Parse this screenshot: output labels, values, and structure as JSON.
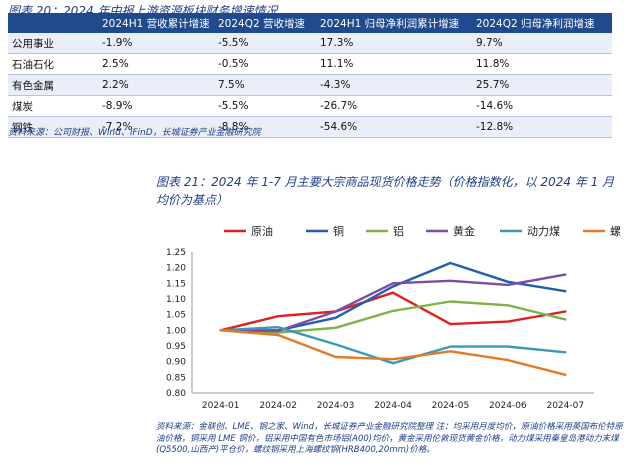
{
  "table_caption": "图表 20：2024 年中报上游资源板块财务增速情况",
  "table": {
    "headers": [
      "",
      "2024H1 营收累计增速",
      "2024Q2 营收增速",
      "2024H1 归母净利润累计增速",
      "2024Q2 归母净利润增速"
    ],
    "rows": [
      [
        "公用事业",
        "-1.9%",
        "-5.5%",
        "17.3%",
        "9.7%"
      ],
      [
        "石油石化",
        "2.5%",
        "-0.5%",
        "11.1%",
        "11.8%"
      ],
      [
        "有色金属",
        "2.2%",
        "7.5%",
        "-4.3%",
        "25.7%"
      ],
      [
        "煤炭",
        "-8.9%",
        "-5.5%",
        "-26.7%",
        "-14.6%"
      ],
      [
        "钢铁",
        "-7.2%",
        "-8.8%",
        "-54.6%",
        "-12.8%"
      ]
    ]
  },
  "table_source": "资料来源：公司财报、Wind、iFinD，长城证券产业金融研究院",
  "chart_caption": "图表 21：2024 年 1-7 月主要大宗商品现货价格走势（价格指数化，以 2024 年 1 月均价为基点）",
  "chart_source": "资料来源：金联创、LME、钢之家、Wind，长城证券产业金融研究院整理 注：均采用月度均价，原油价格采用英国布伦特原油价格，铜采用 LME 铜价，铝采用中国有色市场铝(A00)均价，黄金采用伦敦现货黄金价格，动力煤采用秦皇岛港动力末煤(Q5500,山西产)平仓价，螺纹钢采用上海螺纹钢(HRB400,20mm)价格。",
  "chart_data": {
    "type": "line",
    "x": [
      "2024-01",
      "2024-02",
      "2024-03",
      "2024-04",
      "2024-05",
      "2024-06",
      "2024-07"
    ],
    "ylim": [
      0.8,
      1.25
    ],
    "yticks": [
      "0.80",
      "0.85",
      "0.90",
      "0.95",
      "1.00",
      "1.05",
      "1.10",
      "1.15",
      "1.20",
      "1.25"
    ],
    "grid": false,
    "legend": "top",
    "series": [
      {
        "name": "原油",
        "color": "#e02020",
        "values": [
          1.0,
          1.045,
          1.06,
          1.12,
          1.02,
          1.028,
          1.06
        ]
      },
      {
        "name": "铜",
        "color": "#1f5fb0",
        "values": [
          1.0,
          1.0,
          1.04,
          1.14,
          1.215,
          1.155,
          1.125
        ]
      },
      {
        "name": "铝",
        "color": "#7fb24a",
        "values": [
          1.0,
          0.993,
          1.008,
          1.062,
          1.092,
          1.08,
          1.035
        ]
      },
      {
        "name": "黄金",
        "color": "#7b4ea3",
        "values": [
          1.0,
          0.998,
          1.06,
          1.15,
          1.158,
          1.145,
          1.178
        ]
      },
      {
        "name": "动力煤",
        "color": "#3a9ab4",
        "values": [
          1.0,
          1.01,
          0.955,
          0.895,
          0.948,
          0.948,
          0.93
        ]
      },
      {
        "name": "螺纹钢",
        "color": "#e07b2a",
        "values": [
          1.0,
          0.985,
          0.915,
          0.908,
          0.933,
          0.905,
          0.858
        ]
      }
    ]
  }
}
